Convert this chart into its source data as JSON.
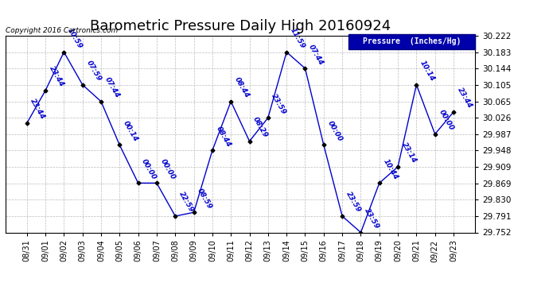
{
  "title": "Barometric Pressure Daily High 20160924",
  "ylabel": "Pressure  (Inches/Hg)",
  "copyright": "Copyright 2016 Cartronics.com",
  "ylim": [
    29.752,
    30.222
  ],
  "yticks": [
    29.752,
    29.791,
    29.83,
    29.869,
    29.909,
    29.948,
    29.987,
    30.026,
    30.065,
    30.105,
    30.144,
    30.183,
    30.222
  ],
  "dates": [
    "08/31",
    "09/01",
    "09/02",
    "09/03",
    "09/04",
    "09/05",
    "09/06",
    "09/07",
    "09/08",
    "09/09",
    "09/10",
    "09/11",
    "09/12",
    "09/13",
    "09/14",
    "09/15",
    "09/16",
    "09/17",
    "09/18",
    "09/19",
    "09/20",
    "09/21",
    "09/22",
    "09/23"
  ],
  "values": [
    30.013,
    30.091,
    30.183,
    30.105,
    30.065,
    29.961,
    29.87,
    29.87,
    29.791,
    29.8,
    29.948,
    30.065,
    29.97,
    30.026,
    30.183,
    30.144,
    29.961,
    29.791,
    29.752,
    29.87,
    29.909,
    30.105,
    29.987,
    30.04
  ],
  "labels": [
    "23:44",
    "23:44",
    "10:59",
    "07:59",
    "07:44",
    "00:14",
    "00:00",
    "00:00",
    "22:59",
    "08:59",
    "08:44",
    "08:44",
    "08:29",
    "23:59",
    "11:59",
    "07:44",
    "00:00",
    "23:59",
    "23:59",
    "10:44",
    "23:14",
    "10:14",
    "00:00",
    "23:44"
  ],
  "line_color": "#0000cc",
  "marker_color": "#000000",
  "label_color": "#0000cc",
  "background_color": "#ffffff",
  "grid_color": "#aaaaaa",
  "legend_bg": "#0000aa",
  "legend_text": "#ffffff",
  "title_fontsize": 13,
  "label_fontsize": 6.5,
  "tick_fontsize": 7.5
}
